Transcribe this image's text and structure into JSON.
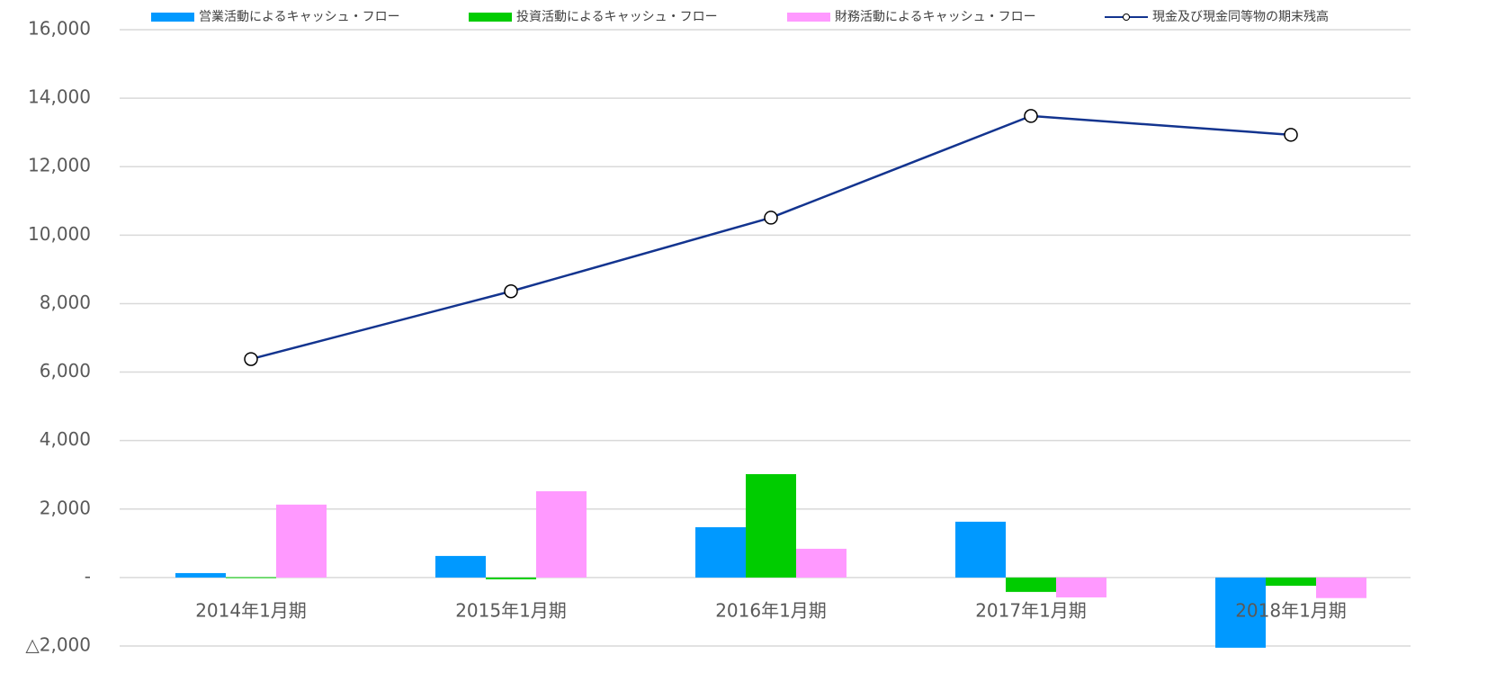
{
  "chart_data": {
    "type": "bar-line",
    "categories": [
      "2014年1月期",
      "2015年1月期",
      "2016年1月期",
      "2017年1月期",
      "2018年1月期"
    ],
    "series": [
      {
        "name": "営業活動によるキャッシュ・フロー",
        "color": "#0099ff",
        "type": "bar",
        "values": [
          130,
          630,
          1470,
          1630,
          -2050
        ]
      },
      {
        "name": "投資活動によるキャッシュ・フロー",
        "color": "#00cc00",
        "type": "bar",
        "values": [
          10,
          -50,
          3020,
          -420,
          -240
        ]
      },
      {
        "name": "財務活動によるキャッシュ・フロー",
        "color": "#ff99ff",
        "type": "bar",
        "values": [
          2130,
          2520,
          840,
          -580,
          -600
        ]
      },
      {
        "name": "現金及び現金同等物の期末残高",
        "color": "#13348f",
        "type": "line",
        "values": [
          6380,
          8360,
          10510,
          13480,
          12930
        ]
      }
    ],
    "ylim": [
      -2000,
      16000
    ],
    "yticks": [
      {
        "value": -2000,
        "label": "△2,000"
      },
      {
        "value": 0,
        "label": "-"
      },
      {
        "value": 2000,
        "label": "2,000"
      },
      {
        "value": 4000,
        "label": "4,000"
      },
      {
        "value": 6000,
        "label": "6,000"
      },
      {
        "value": 8000,
        "label": "8,000"
      },
      {
        "value": 10000,
        "label": "10,000"
      },
      {
        "value": 12000,
        "label": "12,000"
      },
      {
        "value": 14000,
        "label": "14,000"
      },
      {
        "value": 16000,
        "label": "16,000"
      }
    ],
    "grid": true
  }
}
